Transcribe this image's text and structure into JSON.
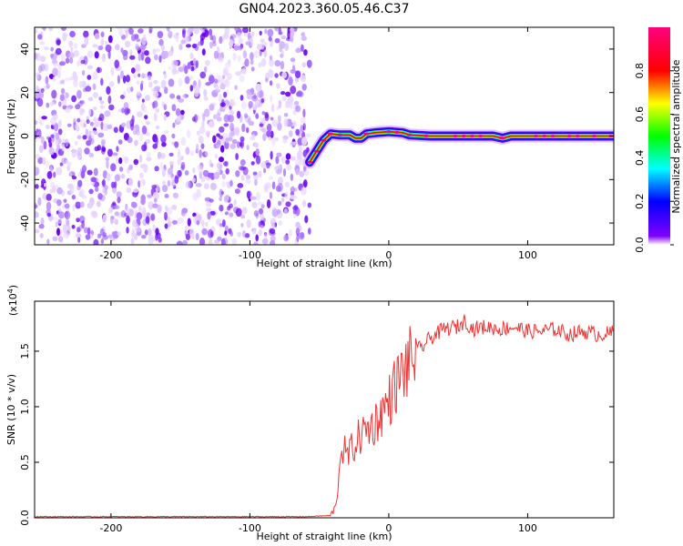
{
  "title": "GN04.2023.360.05.46.C37",
  "chart_data": [
    {
      "type": "heatmap",
      "xlabel": "Height of straight line (km)",
      "ylabel": "Frequency (Hz)",
      "xlim": [
        -255,
        162
      ],
      "ylim": [
        -50,
        50
      ],
      "x_ticks": [
        -200,
        -100,
        0,
        100
      ],
      "y_ticks": [
        -40,
        -20,
        0,
        20,
        40
      ],
      "colorbar": {
        "label": "Normalized spectral amplitude",
        "range": [
          0,
          1
        ],
        "ticks": [
          "0.0",
          "0.2",
          "0.4",
          "0.6",
          "0.8"
        ],
        "colors": [
          "#ffffff",
          "#8000ff",
          "#0000ff",
          "#00ffff",
          "#00ff00",
          "#ffff00",
          "#ff0000",
          "#ff0080"
        ]
      },
      "noise_region": {
        "x_range": [
          -255,
          -57
        ],
        "amplitude": "low-moderate random (purple)"
      },
      "ridge": {
        "description": "signal trace near 0 Hz after onset",
        "x": [
          -57,
          -52,
          -47,
          -42,
          -35,
          -28,
          -24,
          -20,
          -16,
          -10,
          0,
          10,
          15,
          30,
          60,
          75,
          82,
          88,
          100,
          162
        ],
        "y": [
          -12,
          -7,
          -2,
          1,
          0.5,
          0.5,
          -1,
          -1,
          1,
          1.5,
          2,
          1.5,
          0.5,
          0,
          0,
          0,
          -1,
          0,
          0,
          0
        ]
      }
    },
    {
      "type": "line",
      "xlabel": "Height of straight line (km)",
      "ylabel": "SNR (10 * v/v)",
      "y_multiplier": "(x10",
      "y_multiplier_exp": "4",
      "xlim": [
        -255,
        162
      ],
      "ylim": [
        0,
        1.95
      ],
      "x_ticks": [
        -200,
        -100,
        0,
        100
      ],
      "y_ticks": [
        "0.0",
        "0.5",
        "1.0",
        "1.5"
      ],
      "series": [
        {
          "color": "#ee3333",
          "x": [
            -255,
            -200,
            -150,
            -100,
            -60,
            -42,
            -38,
            -36,
            -34,
            -30,
            -25,
            -20,
            -15,
            -10,
            -5,
            0,
            5,
            10,
            15,
            20,
            25,
            30,
            40,
            50,
            55,
            60,
            70,
            80,
            90,
            100,
            110,
            120,
            130,
            140,
            150,
            160,
            162
          ],
          "y": [
            0.01,
            0.01,
            0.01,
            0.01,
            0.01,
            0.02,
            0.1,
            0.4,
            0.65,
            0.55,
            0.65,
            0.75,
            0.8,
            0.85,
            0.95,
            1.05,
            1.2,
            1.3,
            1.4,
            1.5,
            1.55,
            1.62,
            1.7,
            1.72,
            1.78,
            1.7,
            1.72,
            1.7,
            1.72,
            1.68,
            1.68,
            1.7,
            1.65,
            1.68,
            1.65,
            1.66,
            1.68
          ]
        }
      ]
    }
  ]
}
